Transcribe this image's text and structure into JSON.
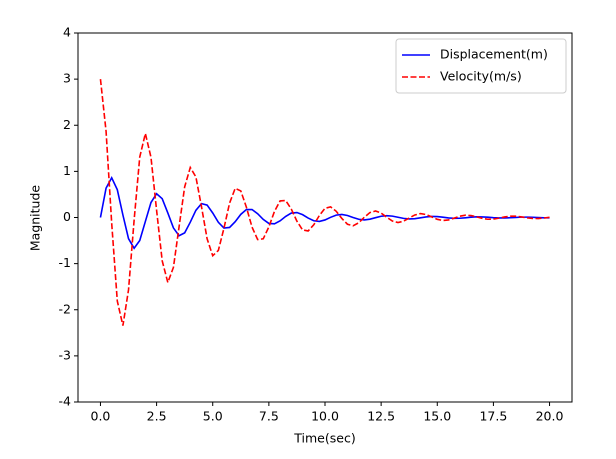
{
  "chart_data": {
    "type": "line",
    "xlabel": "Time(sec)",
    "ylabel": "Magnitude",
    "x": [
      0,
      0.25,
      0.5,
      0.75,
      1,
      1.25,
      1.5,
      1.75,
      2,
      2.25,
      2.5,
      2.75,
      3,
      3.25,
      3.5,
      3.75,
      4,
      4.25,
      4.5,
      4.75,
      5,
      5.25,
      5.5,
      5.75,
      6,
      6.25,
      6.5,
      6.75,
      7,
      7.25,
      7.5,
      7.75,
      8,
      8.25,
      8.5,
      8.75,
      9,
      9.25,
      9.5,
      9.75,
      10,
      10.25,
      10.5,
      10.75,
      11,
      11.25,
      11.5,
      11.75,
      12,
      12.25,
      12.5,
      12.75,
      13,
      13.25,
      13.5,
      13.75,
      14,
      14.25,
      14.5,
      14.75,
      15,
      15.25,
      15.5,
      15.75,
      16,
      16.25,
      16.5,
      16.75,
      17,
      17.25,
      17.5,
      17.75,
      18,
      18.25,
      18.5,
      18.75,
      19,
      19.25,
      19.5,
      19.75,
      20
    ],
    "series": [
      {
        "name": "Displacement(m)",
        "color": "#0000ff",
        "dash": "solid",
        "values": [
          0,
          0.637,
          0.862,
          0.603,
          0.054,
          -0.459,
          -0.667,
          -0.499,
          -0.085,
          0.325,
          0.515,
          0.408,
          0.099,
          -0.226,
          -0.395,
          -0.333,
          -0.102,
          0.156,
          0.301,
          0.269,
          0.098,
          -0.104,
          -0.228,
          -0.216,
          -0.091,
          0.068,
          0.172,
          0.173,
          0.082,
          -0.042,
          -0.129,
          -0.137,
          -0.072,
          0.024,
          0.096,
          0.108,
          0.062,
          -0.012,
          -0.071,
          -0.085,
          -0.053,
          0.004,
          0.052,
          0.066,
          0.044,
          0.001,
          -0.038,
          -0.052,
          -0.037,
          -0.004,
          0.027,
          0.04,
          0.03,
          0.006,
          -0.019,
          -0.031,
          -0.025,
          -0.006,
          0.013,
          0.024,
          0.02,
          0.006,
          -0.009,
          -0.018,
          -0.016,
          -0.006,
          0.006,
          0.014,
          0.013,
          0.006,
          -0.004,
          -0.01,
          -0.01,
          -0.005,
          0.002,
          0.008,
          0.008,
          0.004,
          -0.001,
          -0.006,
          -0.006
        ]
      },
      {
        "name": "Velocity(m/s)",
        "color": "#ff0000",
        "dash": "dashed",
        "values": [
          3,
          1.868,
          -0.12,
          -1.811,
          -2.344,
          -1.568,
          -0.053,
          1.311,
          1.822,
          1.305,
          0.157,
          -0.94,
          -1.409,
          -1.081,
          -0.205,
          0.664,
          1.084,
          0.88,
          0.234,
          -0.462,
          -0.829,
          -0.715,
          -0.233,
          0.312,
          0.631,
          0.576,
          0.222,
          -0.208,
          -0.478,
          -0.462,
          -0.204,
          0.133,
          0.359,
          0.368,
          0.181,
          -0.08,
          -0.269,
          -0.292,
          -0.158,
          0.044,
          0.199,
          0.23,
          0.135,
          -0.02,
          -0.146,
          -0.18,
          -0.115,
          0.004,
          0.107,
          0.141,
          0.096,
          0.006,
          -0.077,
          -0.109,
          -0.08,
          -0.011,
          0.055,
          0.084,
          0.065,
          0.014,
          -0.039,
          -0.065,
          -0.053,
          -0.015,
          0.027,
          0.05,
          0.043,
          0.015,
          -0.018,
          -0.038,
          -0.035,
          -0.014,
          0.012,
          0.028,
          0.028,
          0.013,
          -0.008,
          -0.021,
          -0.022,
          -0.011,
          0.004
        ]
      }
    ],
    "xlim": [
      -1,
      21
    ],
    "ylim": [
      -4,
      4
    ],
    "xticks": [
      {
        "value": 0,
        "label": "0.0"
      },
      {
        "value": 2.5,
        "label": "2.5"
      },
      {
        "value": 5,
        "label": "5.0"
      },
      {
        "value": 7.5,
        "label": "7.5"
      },
      {
        "value": 10,
        "label": "10.0"
      },
      {
        "value": 12.5,
        "label": "12.5"
      },
      {
        "value": 15,
        "label": "15.0"
      },
      {
        "value": 17.5,
        "label": "17.5"
      },
      {
        "value": 20,
        "label": "20.0"
      }
    ],
    "yticks": [
      -4,
      -3,
      -2,
      -1,
      0,
      1,
      2,
      3,
      4
    ],
    "grid": false,
    "legend": "upper-right"
  }
}
